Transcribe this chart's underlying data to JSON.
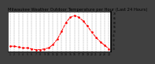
{
  "title": "Milwaukee Weather Outdoor Temperature per Hour (Last 24 Hours)",
  "hours": [
    1,
    2,
    3,
    4,
    5,
    6,
    7,
    8,
    9,
    10,
    11,
    12,
    13,
    14,
    15,
    16,
    17,
    18,
    19,
    20,
    21,
    22,
    23,
    24
  ],
  "temps": [
    33,
    33,
    32,
    31,
    31,
    30,
    29,
    29,
    30,
    31,
    35,
    41,
    50,
    60,
    66,
    68,
    66,
    62,
    56,
    49,
    43,
    38,
    34,
    30
  ],
  "line_color": "#ff0000",
  "bg_color": "#ffffff",
  "outer_bg": "#404040",
  "ylim": [
    27,
    72
  ],
  "ytick_values": [
    30,
    35,
    40,
    45,
    50,
    55,
    60,
    65,
    70
  ],
  "ytick_labels": [
    "30",
    "35",
    "40",
    "45",
    "50",
    "55",
    "60",
    "65",
    "70"
  ],
  "grid_color": "#888888",
  "title_fontsize": 3.8,
  "tick_fontsize": 2.2,
  "linewidth": 0.7,
  "markersize": 1.8
}
